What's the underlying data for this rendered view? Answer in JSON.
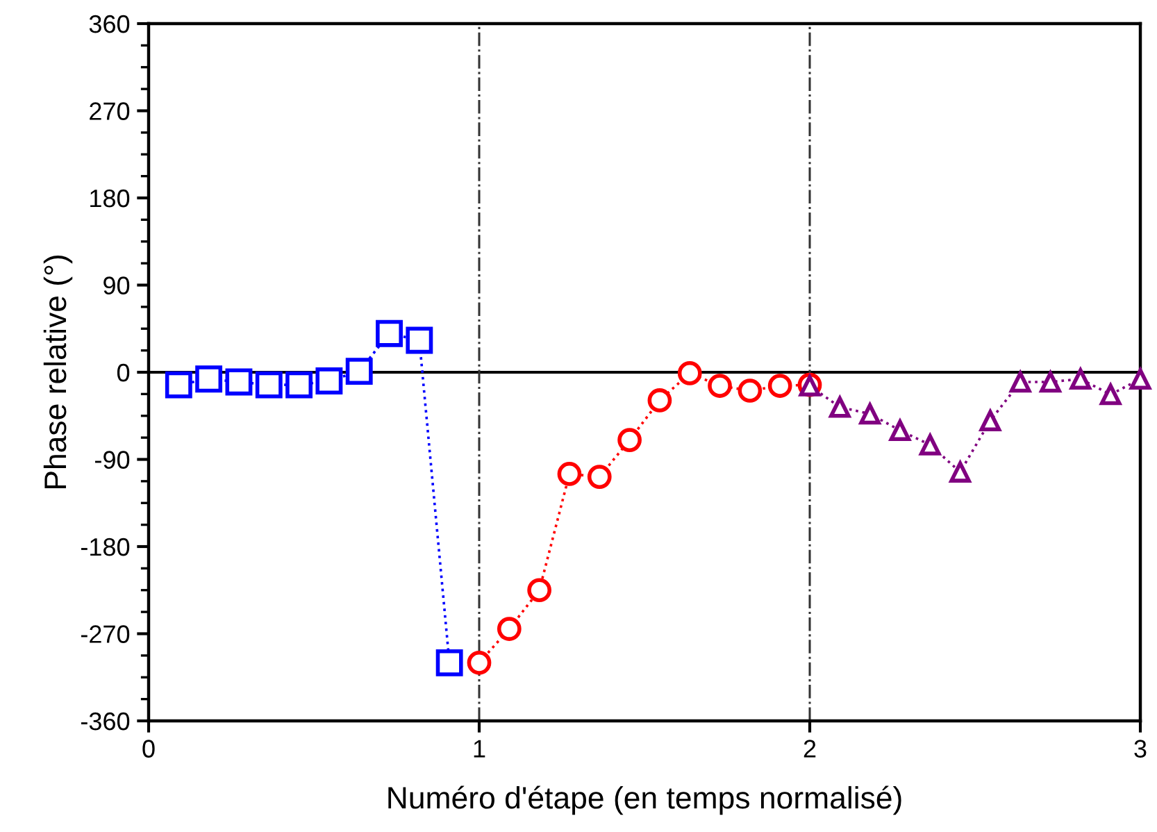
{
  "chart_data": {
    "type": "line",
    "xlabel": "Numéro d'étape (en temps normalisé)",
    "ylabel": "Phase relative (°)",
    "xlim": [
      0,
      3
    ],
    "xticks": [
      0,
      1,
      2,
      3
    ],
    "ylim": [
      -360,
      360
    ],
    "yticks": [
      -360,
      -270,
      -180,
      -90,
      0,
      90,
      180,
      270,
      360
    ],
    "grid": false,
    "legend": false,
    "line_style": "dotted",
    "series": [
      {
        "color": "#0000ff",
        "marker": "square",
        "x": [
          0.091,
          0.182,
          0.273,
          0.364,
          0.455,
          0.546,
          0.637,
          0.728,
          0.819,
          0.91
        ],
        "values": [
          -13,
          -7,
          -10,
          -13,
          -13,
          -9,
          1,
          40,
          33,
          -300
        ]
      },
      {
        "color": "#ff0000",
        "marker": "circle",
        "x": [
          1.0,
          1.091,
          1.182,
          1.273,
          1.364,
          1.455,
          1.546,
          1.637,
          1.728,
          1.819,
          1.91,
          2.0
        ],
        "values": [
          -300,
          -265,
          -225,
          -105,
          -108,
          -70,
          -29,
          -1,
          -14,
          -19,
          -14,
          -13
        ]
      },
      {
        "color": "#800080",
        "marker": "triangle",
        "x": [
          2.0,
          2.091,
          2.182,
          2.273,
          2.364,
          2.455,
          2.546,
          2.637,
          2.728,
          2.819,
          2.91,
          3.0
        ],
        "values": [
          -14,
          -36,
          -43,
          -60,
          -75,
          -103,
          -50,
          -10,
          -10,
          -7,
          -23,
          -7
        ]
      }
    ],
    "ref_lines": [
      {
        "axis": "y",
        "value": 0,
        "color": "#000000",
        "line_style": "solid"
      },
      {
        "axis": "x",
        "value": 1,
        "color": "#333333",
        "line_style": "dashdot"
      },
      {
        "axis": "x",
        "value": 2,
        "color": "#333333",
        "line_style": "dashdot"
      }
    ]
  }
}
